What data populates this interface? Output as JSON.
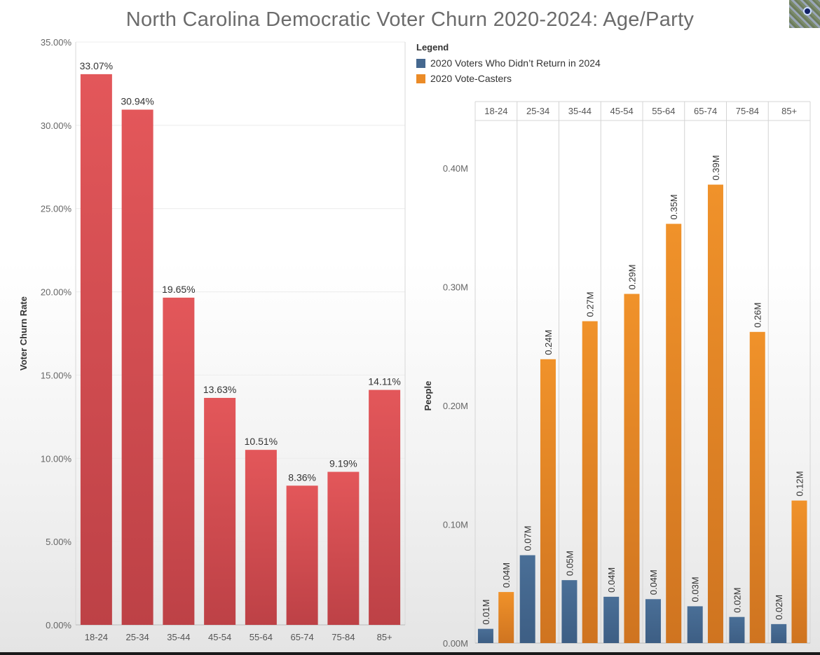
{
  "title": "North Carolina Democratic Voter Churn 2020-2024: Age/Party",
  "legend": {
    "title": "Legend",
    "items": [
      {
        "label": "2020 Voters Who Didn’t Return in 2024",
        "color": "#45688f"
      },
      {
        "label": "2020 Vote-Casters",
        "color": "#eb8b27"
      }
    ]
  },
  "chart_data": [
    {
      "type": "bar",
      "ylabel": "Voter Churn Rate",
      "xlabel": "",
      "categories": [
        "18-24",
        "25-34",
        "35-44",
        "45-54",
        "55-64",
        "65-74",
        "75-84",
        "85+"
      ],
      "values": [
        33.07,
        30.94,
        19.65,
        13.63,
        10.51,
        8.36,
        9.19,
        14.11
      ],
      "value_labels": [
        "33.07%",
        "30.94%",
        "19.65%",
        "13.63%",
        "10.51%",
        "8.36%",
        "9.19%",
        "14.11%"
      ],
      "ylim": [
        0,
        35
      ],
      "yticks": [
        0,
        5,
        10,
        15,
        20,
        25,
        30,
        35
      ],
      "ytick_labels": [
        "0.00%",
        "5.00%",
        "10.00%",
        "15.00%",
        "20.00%",
        "25.00%",
        "30.00%",
        "35.00%"
      ],
      "grid": true,
      "bar_color": "#d9504f"
    },
    {
      "type": "bar",
      "ylabel": "People",
      "xlabel": "",
      "categories": [
        "18-24",
        "25-34",
        "35-44",
        "45-54",
        "55-64",
        "65-74",
        "75-84",
        "85+"
      ],
      "series": [
        {
          "name": "2020 Voters Who Didn’t Return in 2024",
          "color": "#45688f",
          "values": [
            0.012,
            0.074,
            0.053,
            0.039,
            0.037,
            0.031,
            0.022,
            0.016
          ],
          "labels": [
            "0.01M",
            "0.07M",
            "0.05M",
            "0.04M",
            "0.04M",
            "0.03M",
            "0.02M",
            "0.02M"
          ]
        },
        {
          "name": "2020 Vote-Casters",
          "color": "#eb8b27",
          "values": [
            0.043,
            0.239,
            0.271,
            0.294,
            0.353,
            0.386,
            0.262,
            0.12
          ],
          "labels": [
            "0.04M",
            "0.24M",
            "0.27M",
            "0.29M",
            "0.35M",
            "0.39M",
            "0.26M",
            "0.12M"
          ]
        }
      ],
      "ylim": [
        0,
        0.44
      ],
      "yticks": [
        0,
        0.1,
        0.2,
        0.3,
        0.4
      ],
      "ytick_labels": [
        "0.00M",
        "0.10M",
        "0.20M",
        "0.30M",
        "0.40M"
      ],
      "grid": false,
      "legend_position": "top-left"
    }
  ]
}
